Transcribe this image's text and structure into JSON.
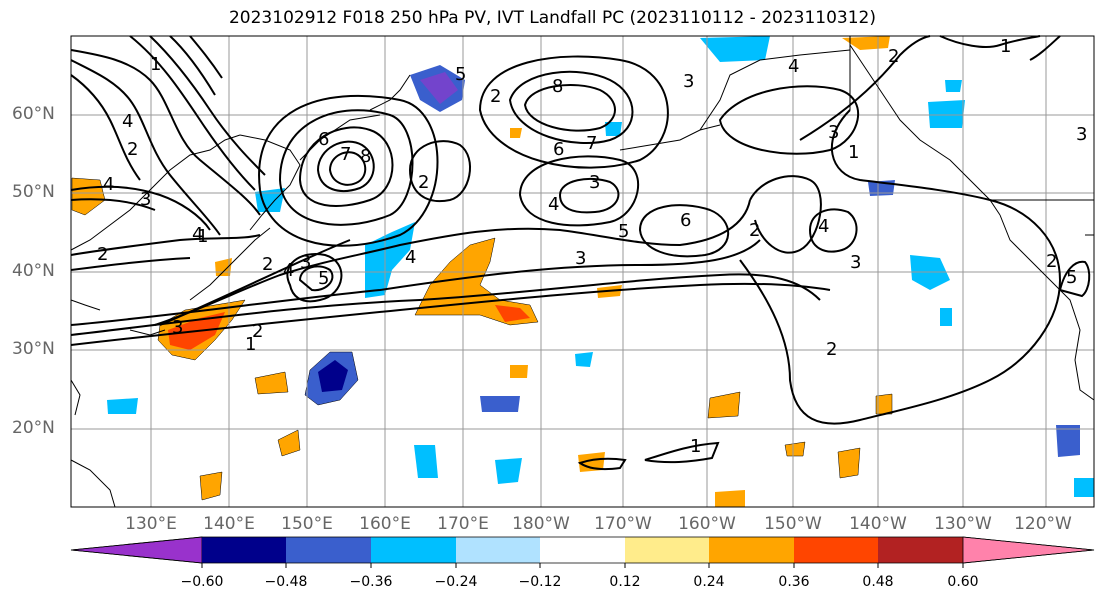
{
  "title": "2023102912 F018 250 hPa PV, IVT Landfall PC (2023110112 - 2023110312)",
  "lat_labels": [
    "60°N",
    "50°N",
    "40°N",
    "30°N",
    "20°N"
  ],
  "lon_labels": [
    "130°E",
    "140°E",
    "150°E",
    "160°E",
    "170°E",
    "180°W",
    "170°W",
    "160°W",
    "150°W",
    "140°W",
    "130°W",
    "120°W"
  ],
  "colorbar": {
    "ticks": [
      "−0.60",
      "−0.48",
      "−0.36",
      "−0.24",
      "−0.12",
      "0.12",
      "0.24",
      "0.36",
      "0.48",
      "0.60"
    ],
    "colors": [
      "#9932cc",
      "#00008b",
      "#3a5fcd",
      "#00bfff",
      "#b0e2ff",
      "#ffffff",
      "#ffec8b",
      "#ffa500",
      "#ff4500",
      "#b22222",
      "#ff82ab"
    ]
  },
  "contour_labels": [
    "1",
    "2",
    "3",
    "4",
    "5",
    "6",
    "7",
    "8",
    "2",
    "3",
    "4",
    "5",
    "6",
    "7",
    "8",
    "1",
    "2",
    "3",
    "4",
    "5",
    "6",
    "2",
    "3",
    "4",
    "2",
    "3",
    "4",
    "2",
    "1",
    "2",
    "3",
    "1",
    "2",
    "3",
    "4",
    "5",
    "2",
    "3",
    "4",
    "1",
    "1",
    "2",
    "3",
    "4"
  ]
}
